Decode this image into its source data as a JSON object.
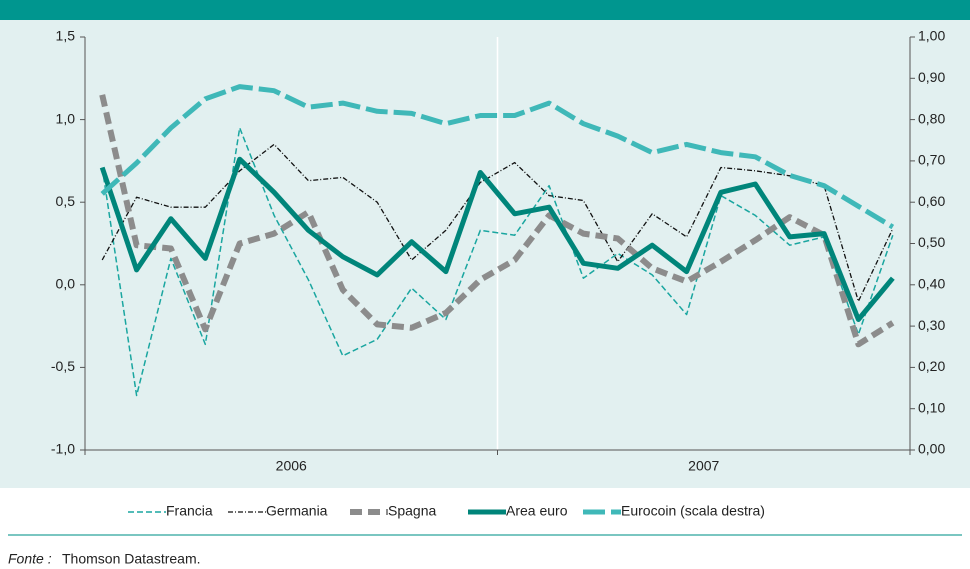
{
  "chart_data": {
    "type": "line",
    "categories": [
      null,
      null,
      null,
      null,
      null,
      null,
      null,
      null,
      null,
      null,
      null,
      null,
      null,
      null,
      null,
      null,
      null,
      null,
      null,
      null,
      null,
      null,
      null,
      null
    ],
    "year_labels": [
      "2006",
      "2007"
    ],
    "ylim": [
      -1.0,
      1.5
    ],
    "yticks": [
      {
        "value": -1.0,
        "label": "-1,0"
      },
      {
        "value": -0.5,
        "label": "-0,5"
      },
      {
        "value": 0.0,
        "label": "0,0"
      },
      {
        "value": 0.5,
        "label": "0,5"
      },
      {
        "value": 1.0,
        "label": "1,0"
      },
      {
        "value": 1.5,
        "label": "1,5"
      }
    ],
    "y2lim": [
      0,
      1
    ],
    "y2ticks": [
      {
        "value": 0,
        "label": "0,00"
      },
      {
        "value": 0.1,
        "label": "0,10"
      },
      {
        "value": 0.2,
        "label": "0,20"
      },
      {
        "value": 0.3,
        "label": "0,30"
      },
      {
        "value": 0.4,
        "label": "0,40"
      },
      {
        "value": 0.5,
        "label": "0,50"
      },
      {
        "value": 0.6,
        "label": "0,60"
      },
      {
        "value": 0.7,
        "label": "0,70"
      },
      {
        "value": 0.8,
        "label": "0,80"
      },
      {
        "value": 0.9,
        "label": "0,90"
      },
      {
        "value": 1,
        "label": "1,00"
      }
    ],
    "series": [
      {
        "name": "Francia",
        "color": "#1aa6a0",
        "width": 1.5,
        "dash": "6,3",
        "values": [
          0.71,
          -0.67,
          0.16,
          -0.36,
          0.95,
          0.42,
          0.03,
          -0.43,
          -0.33,
          -0.02,
          -0.21,
          0.33,
          0.3,
          0.6,
          0.04,
          0.19,
          0.06,
          -0.18,
          0.54,
          0.42,
          0.24,
          0.29,
          -0.3,
          0.3
        ]
      },
      {
        "name": "Germania",
        "color": "#111111",
        "width": 1.3,
        "dash": "5,2,1,2",
        "values": [
          0.15,
          0.53,
          0.47,
          0.47,
          0.69,
          0.85,
          0.63,
          0.65,
          0.5,
          0.15,
          0.33,
          0.62,
          0.74,
          0.54,
          0.51,
          0.14,
          0.43,
          0.29,
          0.71,
          0.69,
          0.66,
          0.6,
          -0.1,
          0.34
        ]
      },
      {
        "name": "Spagna",
        "color": "#8c8c8c",
        "width": 6,
        "dash": "12,6",
        "values": [
          1.15,
          0.24,
          0.22,
          -0.27,
          0.25,
          0.31,
          0.44,
          -0.03,
          -0.24,
          -0.26,
          -0.17,
          0.03,
          0.15,
          0.42,
          0.31,
          0.28,
          0.1,
          0.02,
          0.14,
          0.27,
          0.41,
          0.3,
          -0.36,
          -0.23
        ]
      },
      {
        "name": "Area euro",
        "color": "#00857a",
        "width": 5,
        "dash": "none",
        "values": [
          0.71,
          0.09,
          0.4,
          0.16,
          0.76,
          0.56,
          0.33,
          0.17,
          0.06,
          0.26,
          0.08,
          0.68,
          0.43,
          0.47,
          0.13,
          0.1,
          0.24,
          0.08,
          0.56,
          0.61,
          0.29,
          0.31,
          -0.21,
          0.04
        ]
      },
      {
        "name": "Eurocoin (scala destra)",
        "color": "#3fb8b8",
        "width": 5,
        "dash": "22,6",
        "axis": "y2",
        "values": [
          0.62,
          0.695,
          0.78,
          0.85,
          0.88,
          0.87,
          0.83,
          0.84,
          0.82,
          0.815,
          0.79,
          0.81,
          0.81,
          0.84,
          0.79,
          0.76,
          0.72,
          0.74,
          0.72,
          0.71,
          0.665,
          0.64,
          0.59,
          0.54
        ]
      }
    ],
    "source_label": "Fonte :",
    "source": "Thomson Datastream."
  }
}
